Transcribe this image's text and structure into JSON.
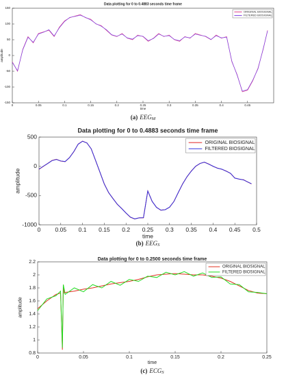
{
  "chart_data": [
    {
      "type": "line",
      "title": "Data plotting for 0 to 0.4883 seconds time frame",
      "xlabel": "time",
      "ylabel": "amplitude",
      "caption_label": "(a)",
      "caption_name": "EEG",
      "caption_sub": "M",
      "x": [
        0,
        0.01,
        0.02,
        0.03,
        0.04,
        0.05,
        0.06,
        0.07,
        0.08,
        0.09,
        0.1,
        0.11,
        0.12,
        0.13,
        0.14,
        0.15,
        0.16,
        0.17,
        0.18,
        0.19,
        0.2,
        0.21,
        0.22,
        0.23,
        0.24,
        0.25,
        0.26,
        0.27,
        0.28,
        0.29,
        0.3,
        0.31,
        0.32,
        0.33,
        0.34,
        0.35,
        0.36,
        0.37,
        0.38,
        0.39,
        0.4,
        0.41,
        0.42,
        0.43,
        0.44,
        0.45,
        0.46,
        0.47,
        0.48,
        0.4883
      ],
      "series": [
        {
          "name": "ORIGINAL BIOSIGNAL",
          "color": "#e0408a",
          "values": [
            -20,
            -50,
            20,
            60,
            40,
            70,
            75,
            80,
            60,
            90,
            110,
            120,
            125,
            130,
            120,
            115,
            100,
            95,
            80,
            65,
            60,
            70,
            55,
            50,
            65,
            60,
            45,
            55,
            70,
            60,
            65,
            50,
            45,
            60,
            55,
            70,
            65,
            60,
            50,
            65,
            55,
            60,
            -20,
            -60,
            -115,
            -110,
            -80,
            -40,
            20,
            80
          ]
        },
        {
          "name": "FILTERED BIOSIGNAL",
          "color": "#7b3fe4",
          "values": [
            -22,
            -48,
            18,
            58,
            42,
            68,
            74,
            82,
            62,
            88,
            108,
            121,
            124,
            128,
            121,
            113,
            101,
            93,
            82,
            66,
            61,
            68,
            56,
            52,
            63,
            61,
            47,
            54,
            68,
            61,
            63,
            51,
            47,
            59,
            56,
            68,
            64,
            61,
            51,
            63,
            56,
            58,
            -18,
            -62,
            -113,
            -108,
            -78,
            -42,
            22,
            78
          ]
        }
      ],
      "xlim": [
        0,
        0.5
      ],
      "ylim": [
        -150,
        150
      ],
      "xticks": [
        0,
        0.05,
        0.1,
        0.15,
        0.2,
        0.25,
        0.3,
        0.35,
        0.4,
        0.45
      ],
      "yticks": [
        -150,
        -100,
        -50,
        0,
        50,
        100,
        150
      ],
      "grid": false,
      "legend": "upper right"
    },
    {
      "type": "line",
      "title": "Data plotting for 0 to 0.4883 seconds time frame",
      "xlabel": "time",
      "ylabel": "amplitude",
      "caption_label": "(b)",
      "caption_name": "EEG",
      "caption_sub": "S",
      "x": [
        0,
        0.01,
        0.02,
        0.03,
        0.04,
        0.05,
        0.06,
        0.07,
        0.08,
        0.09,
        0.1,
        0.11,
        0.12,
        0.13,
        0.14,
        0.15,
        0.16,
        0.17,
        0.18,
        0.19,
        0.2,
        0.21,
        0.22,
        0.23,
        0.24,
        0.25,
        0.26,
        0.27,
        0.28,
        0.29,
        0.3,
        0.31,
        0.32,
        0.33,
        0.34,
        0.35,
        0.36,
        0.37,
        0.38,
        0.39,
        0.4,
        0.41,
        0.42,
        0.43,
        0.44,
        0.45,
        0.46,
        0.47,
        0.48,
        0.4883
      ],
      "series": [
        {
          "name": "ORIGINAL BIOSIGNAL",
          "color": "#e02020",
          "values": [
            -50,
            0,
            50,
            100,
            120,
            90,
            80,
            150,
            250,
            380,
            430,
            400,
            300,
            100,
            -100,
            -300,
            -450,
            -550,
            -650,
            -720,
            -800,
            -870,
            -900,
            -880,
            -880,
            -420,
            -600,
            -700,
            -750,
            -740,
            -700,
            -600,
            -450,
            -300,
            -180,
            -80,
            0,
            50,
            70,
            40,
            0,
            -30,
            -50,
            -80,
            -120,
            -200,
            -220,
            -230,
            -270,
            -300
          ]
        },
        {
          "name": "FILTERED BIOSIGNAL",
          "color": "#3030e0",
          "values": [
            -48,
            2,
            48,
            98,
            118,
            92,
            82,
            148,
            252,
            378,
            428,
            402,
            298,
            102,
            -98,
            -302,
            -448,
            -552,
            -648,
            -722,
            -798,
            -868,
            -898,
            -882,
            -878,
            -422,
            -598,
            -702,
            -748,
            -742,
            -698,
            -602,
            -448,
            -302,
            -178,
            -82,
            2,
            48,
            72,
            38,
            2,
            -32,
            -48,
            -82,
            -118,
            -202,
            -218,
            -232,
            -268,
            -298
          ]
        }
      ],
      "xlim": [
        0,
        0.5
      ],
      "ylim": [
        -1000,
        500
      ],
      "xticks": [
        0,
        0.05,
        0.1,
        0.15,
        0.2,
        0.25,
        0.3,
        0.35,
        0.4,
        0.45,
        0.5
      ],
      "yticks": [
        -1000,
        -500,
        0,
        500
      ],
      "grid": false,
      "legend": "upper right"
    },
    {
      "type": "line",
      "title": "Data plotting for 0 to 0.2500 seconds time frame",
      "xlabel": "time",
      "ylabel": "amplitude",
      "caption_label": "(c)",
      "caption_name": "ECG",
      "caption_sub": "S",
      "x": [
        0,
        0.01,
        0.02,
        0.025,
        0.027,
        0.028,
        0.029,
        0.03,
        0.04,
        0.05,
        0.06,
        0.07,
        0.08,
        0.09,
        0.1,
        0.11,
        0.12,
        0.13,
        0.14,
        0.15,
        0.16,
        0.17,
        0.18,
        0.19,
        0.2,
        0.21,
        0.22,
        0.23,
        0.24,
        0.25
      ],
      "series": [
        {
          "name": "ORIGINAL BIOSIGNAL",
          "color": "#e03020",
          "values": [
            1.48,
            1.6,
            1.7,
            1.72,
            0.85,
            1.85,
            1.72,
            1.73,
            1.75,
            1.78,
            1.8,
            1.83,
            1.86,
            1.88,
            1.9,
            1.93,
            1.97,
            2.0,
            2.01,
            2.02,
            2.01,
            2.0,
            2.0,
            1.98,
            1.95,
            1.9,
            1.83,
            1.76,
            1.72,
            1.71
          ]
        },
        {
          "name": "FILTERED BIOSIGNAL",
          "color": "#22dd22",
          "values": [
            1.45,
            1.63,
            1.68,
            1.75,
            0.88,
            1.85,
            1.78,
            1.7,
            1.8,
            1.74,
            1.85,
            1.8,
            1.9,
            1.84,
            1.93,
            1.9,
            1.98,
            1.96,
            2.04,
            2.0,
            2.05,
            1.98,
            2.03,
            1.96,
            1.97,
            1.86,
            1.85,
            1.74,
            1.73,
            1.71
          ]
        }
      ],
      "xlim": [
        0,
        0.25
      ],
      "ylim": [
        0.8,
        2.2
      ],
      "xticks": [
        0,
        0.05,
        0.1,
        0.15,
        0.2,
        0.25
      ],
      "yticks": [
        0.8,
        1,
        1.2,
        1.4,
        1.6,
        1.8,
        2,
        2.2
      ],
      "grid": false,
      "legend": "upper right"
    }
  ]
}
